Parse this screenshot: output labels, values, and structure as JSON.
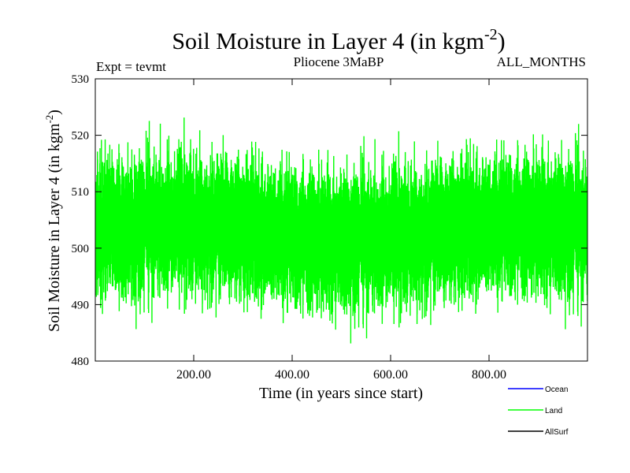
{
  "chart_data": {
    "type": "line",
    "title": "Soil Moisture in Layer 4 (in kgm",
    "title_superscript": "-2",
    "title_suffix": ")",
    "subtitle_left": "Expt = tevmt",
    "subtitle_center": "Pliocene   3MaBP",
    "subtitle_right": "ALL_MONTHS",
    "xlabel": "Time (in years since start)",
    "ylabel": "Soil Moisture in Layer 4 (in kgm",
    "ylabel_superscript": "-2",
    "ylabel_suffix": ")",
    "xlim": [
      0,
      1000
    ],
    "ylim": [
      480,
      530
    ],
    "x_ticks": [
      200,
      400,
      600,
      800
    ],
    "x_tick_labels": [
      "200.00",
      "400.00",
      "600.00",
      "800.00"
    ],
    "y_ticks": [
      480,
      490,
      500,
      510,
      520,
      530
    ],
    "y_tick_labels": [
      "480",
      "490",
      "500",
      "510",
      "520",
      "530"
    ],
    "grid": false,
    "legend_position": "bottom-right",
    "series": [
      {
        "name": "Ocean",
        "color": "#0000ff",
        "values": []
      },
      {
        "name": "Land",
        "color": "#00ff00",
        "mean": 503,
        "low": 482,
        "high": 526,
        "n_points": 12000,
        "description_range": [
          482,
          526
        ]
      },
      {
        "name": "AllSurf",
        "color": "#000000",
        "values": []
      }
    ]
  }
}
